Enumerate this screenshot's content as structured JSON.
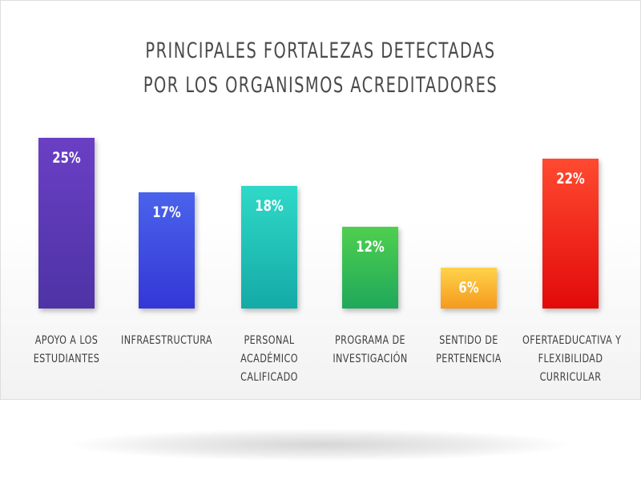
{
  "chart_data": {
    "type": "bar",
    "title": [
      "PRINCIPALES FORTALEZAS DETECTADAS",
      "POR LOS ORGANISMOS ACREDITADORES"
    ],
    "categories": [
      [
        "APOYO A LOS",
        "ESTUDIANTES"
      ],
      [
        "INFRAESTRUCTURA"
      ],
      [
        "PERSONAL",
        "ACADÉMICO",
        "CALIFICADO"
      ],
      [
        "PROGRAMA DE",
        "INVESTIGACIÓN"
      ],
      [
        "SENTIDO DE",
        "PERTENENCIA"
      ],
      [
        "OFERTAEDUCATIVA Y",
        "FLEXIBILIDAD",
        "CURRICULAR"
      ]
    ],
    "values": [
      25,
      17,
      18,
      12,
      6,
      22
    ],
    "value_labels": [
      "25%",
      "17%",
      "18%",
      "12%",
      "6%",
      "22%"
    ],
    "colors": [
      [
        "#6a3fc4",
        "#4e33a6"
      ],
      [
        "#4a63ec",
        "#3437d6"
      ],
      [
        "#2fd9c8",
        "#14aaa6"
      ],
      [
        "#4fcf4f",
        "#1fa85a"
      ],
      [
        "#ffd34a",
        "#f59a1d"
      ],
      [
        "#ff4a30",
        "#e20a0a"
      ]
    ],
    "ylim": [
      0,
      25
    ]
  }
}
